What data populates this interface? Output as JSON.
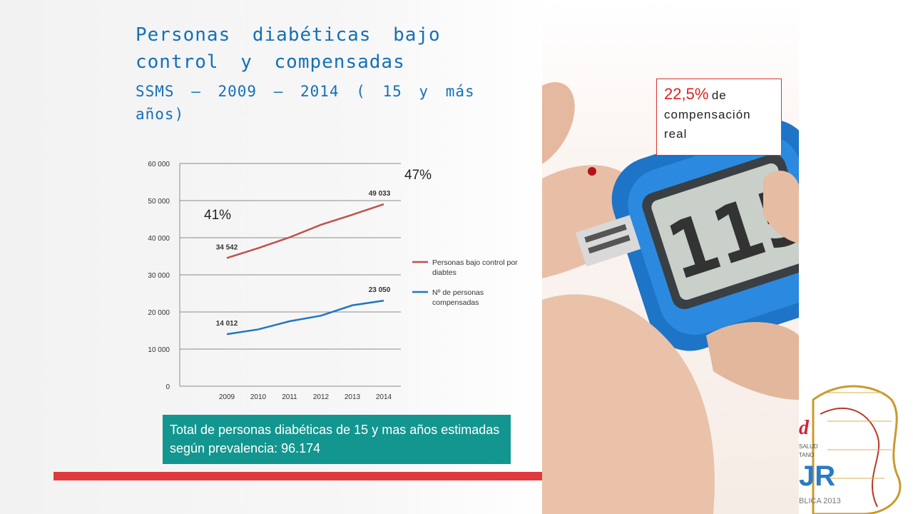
{
  "slide": {
    "title": "Personas diabéticas bajo control y compensadas",
    "subtitle": "SSMS – 2009 – 2014 ( 15 y más años)",
    "pct_2009": "41%",
    "pct_2014": "47%",
    "total_box": "Total de personas diabéticas de 15 y mas años estimadas según prevalencia: 96.174",
    "callout_pct": "22,5%",
    "callout_word": "de",
    "callout_rest": "compensación real",
    "logo_letters": "d",
    "logo_line1": "SALUD",
    "logo_line2": "TANO",
    "logo_big": "JR",
    "logo_bottom": "BLICA 2013",
    "colors": {
      "title": "#1470b8",
      "box": "#13968f",
      "bar": "#e03a3e",
      "callout_pct": "#e02020"
    }
  },
  "chart_data": {
    "type": "line",
    "x": [
      "2009",
      "2010",
      "2011",
      "2012",
      "2013",
      "2014"
    ],
    "ylim": [
      0,
      60000
    ],
    "yticks": [
      0,
      10000,
      20000,
      30000,
      40000,
      50000,
      60000
    ],
    "ytick_labels": [
      "0",
      "10 000",
      "20 000",
      "30 000",
      "40 000",
      "50 000",
      "60 000"
    ],
    "grid": true,
    "legend_position": "right",
    "series": [
      {
        "name": "Personas bajo control por diabtes",
        "color": "#c0504d",
        "values": [
          34542,
          37200,
          40100,
          43500,
          46200,
          49033
        ],
        "labels": {
          "0": "34 542",
          "5": "49 033"
        }
      },
      {
        "name": "Nº de personas compensadas",
        "color": "#1f77c4",
        "values": [
          14012,
          15300,
          17500,
          19000,
          21800,
          23050
        ],
        "labels": {
          "0": "14 012",
          "5": "23 050"
        }
      }
    ]
  }
}
